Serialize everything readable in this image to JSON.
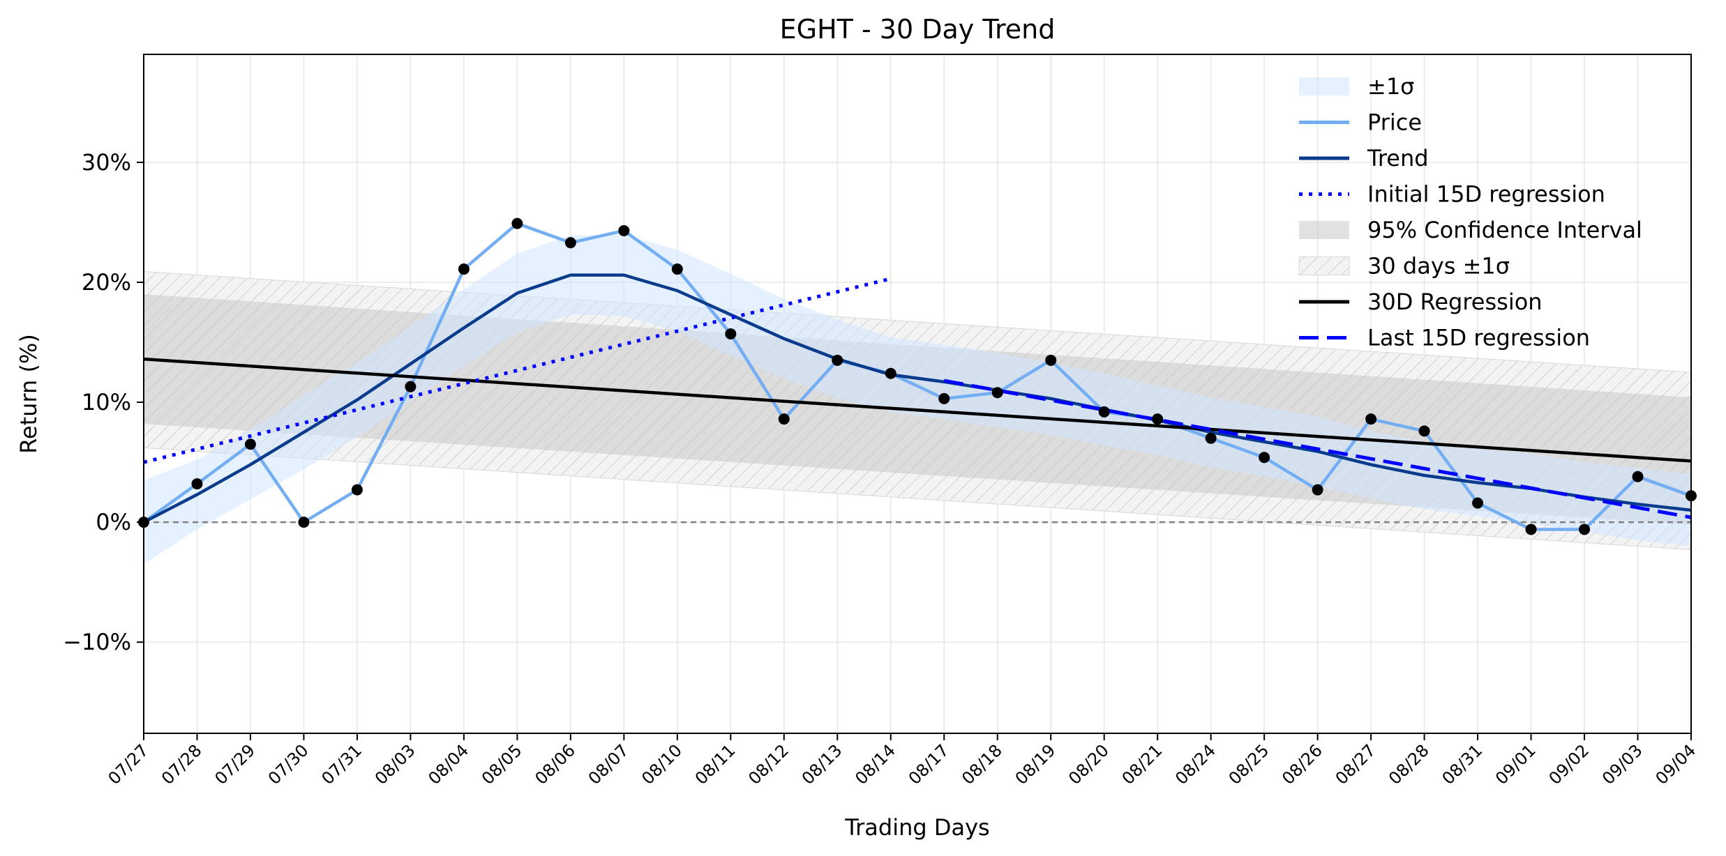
{
  "chart_data": {
    "type": "line",
    "title": "EGHT - 30 Day Trend",
    "xlabel": "Trading Days",
    "ylabel": "Return (%)",
    "ylim": [
      -17.6,
      39
    ],
    "yticks": [
      -10,
      0,
      10,
      20,
      30
    ],
    "ytick_labels": [
      "−10%",
      "0%",
      "10%",
      "20%",
      "30%"
    ],
    "grid": true,
    "legend_position": "top-right",
    "categories": [
      "07/27",
      "07/28",
      "07/29",
      "07/30",
      "07/31",
      "08/03",
      "08/04",
      "08/05",
      "08/06",
      "08/07",
      "08/10",
      "08/11",
      "08/12",
      "08/13",
      "08/14",
      "08/17",
      "08/18",
      "08/19",
      "08/20",
      "08/21",
      "08/24",
      "08/25",
      "08/26",
      "08/27",
      "08/28",
      "08/31",
      "09/01",
      "09/02",
      "09/03",
      "09/04"
    ],
    "series": [
      {
        "name": "Price",
        "color": "#73adf2",
        "values": [
          0.0,
          3.2,
          6.5,
          0.0,
          2.7,
          11.3,
          21.1,
          24.9,
          23.3,
          24.3,
          21.1,
          15.7,
          8.6,
          13.5,
          12.4,
          10.3,
          10.8,
          13.5,
          9.2,
          8.6,
          7.0,
          5.4,
          2.7,
          8.6,
          7.6,
          1.6,
          -0.6,
          -0.6,
          3.8,
          2.2
        ]
      },
      {
        "name": "Trend",
        "color": "#0a3b8c",
        "values": [
          0.0,
          2.3,
          4.8,
          7.5,
          10.2,
          13.2,
          16.2,
          19.1,
          20.6,
          20.6,
          19.3,
          17.3,
          15.3,
          13.6,
          12.3,
          11.7,
          11.0,
          10.3,
          9.4,
          8.5,
          7.5,
          6.7,
          5.9,
          4.8,
          3.9,
          3.3,
          2.8,
          2.1,
          1.5,
          1.0
        ]
      },
      {
        "name": "Initial 15D regression",
        "color": "#0000ff",
        "style": "dotted",
        "x_range": [
          "07/27",
          "08/14"
        ],
        "start": 5.0,
        "end": 20.3
      },
      {
        "name": "Last 15D regression",
        "color": "#0000ff",
        "style": "dashed",
        "x_range": [
          "08/17",
          "09/04"
        ],
        "start": 11.8,
        "end": 0.4
      },
      {
        "name": "30D Regression",
        "color": "#000000",
        "style": "solid",
        "x_range": [
          "07/27",
          "09/04"
        ],
        "start": 13.6,
        "end": 5.1
      }
    ],
    "bands": [
      {
        "name": "±1σ",
        "color": "#ddeeff",
        "lower": [
          -3.5,
          -0.6,
          1.9,
          4.4,
          7.1,
          10.1,
          13.0,
          15.8,
          17.3,
          17.2,
          15.9,
          13.9,
          12.0,
          10.3,
          9.2,
          8.6,
          7.9,
          7.3,
          6.4,
          5.6,
          4.6,
          3.8,
          3.0,
          2.0,
          1.1,
          0.5,
          -0.1,
          -0.8,
          -1.5,
          -2.0
        ],
        "upper": [
          3.5,
          5.2,
          7.7,
          10.6,
          13.3,
          16.3,
          19.4,
          22.4,
          23.9,
          24.0,
          22.7,
          20.7,
          18.6,
          16.9,
          15.4,
          14.8,
          14.1,
          13.3,
          12.4,
          11.4,
          10.4,
          9.6,
          8.8,
          7.6,
          6.7,
          6.1,
          5.7,
          5.0,
          4.5,
          4.0
        ]
      },
      {
        "name": "95% Confidence Interval",
        "color": "#c8c8c8",
        "lower_start": 8.2,
        "lower_end": -0.2,
        "upper_start": 19.0,
        "upper_end": 10.4
      },
      {
        "name": "30 days ±1σ",
        "color": "#dcdcdc",
        "hatch": true,
        "lower_start": 6.2,
        "lower_end": -2.3,
        "upper_start": 20.9,
        "upper_end": 12.5
      }
    ],
    "baseline": 0,
    "legend": [
      "±1σ",
      "Price",
      "Trend",
      "Initial 15D regression",
      "95% Confidence Interval",
      "30 days ±1σ",
      "30D Regression",
      "Last 15D regression"
    ]
  }
}
